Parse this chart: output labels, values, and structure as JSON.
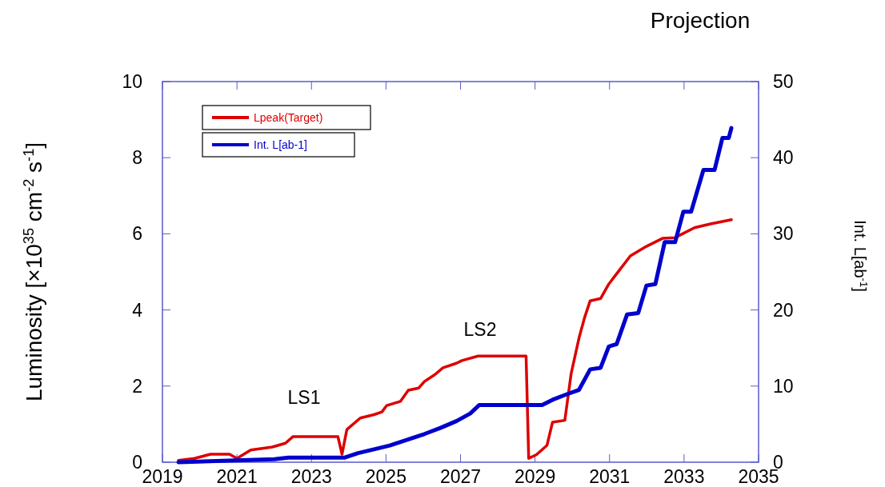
{
  "chart_data": {
    "type": "line",
    "title": "Projection",
    "ylabel": "Luminosity [×10$^{35}$ cm$^{-2}$ s$^{-1}$]",
    "y2label": "Int. L[ab$^{-1}$]",
    "annotations": [
      "LS1",
      "LS2"
    ],
    "xlim": [
      2019,
      2035
    ],
    "xticks": [
      2019,
      2021,
      2023,
      2025,
      2027,
      2029,
      2031,
      2033,
      2035
    ],
    "ylim": [
      0,
      10
    ],
    "yticks": [
      0,
      2,
      4,
      6,
      8,
      10
    ],
    "y2lim": [
      0,
      50
    ],
    "y2ticks": [
      0,
      10,
      20,
      30,
      40,
      50
    ],
    "legend": "top left",
    "grid": false,
    "line_style": "solid",
    "marker": "none",
    "series": [
      {
        "name": "Lpeak(Target)",
        "color": "#dd0000",
        "x": [
          2019.43,
          2019.86,
          2020.29,
          2020.8,
          2021.0,
          2021.37,
          2021.95,
          2022.3,
          2022.5,
          2023.71,
          2023.82,
          2023.95,
          2024.31,
          2024.68,
          2024.89,
          2025.02,
          2025.39,
          2025.6,
          2025.88,
          2026.03,
          2026.31,
          2026.53,
          2026.89,
          2027.04,
          2027.47,
          2028.76,
          2028.83,
          2029.04,
          2029.32,
          2029.47,
          2029.8,
          2029.97,
          2030.18,
          2030.33,
          2030.48,
          2030.76,
          2030.98,
          2031.26,
          2031.56,
          2031.99,
          2032.42,
          2032.76,
          2033.28,
          2033.71,
          2034.27
        ],
        "values": [
          0.05,
          0.1,
          0.21,
          0.21,
          0.1,
          0.32,
          0.4,
          0.5,
          0.67,
          0.67,
          0.21,
          0.86,
          1.16,
          1.25,
          1.32,
          1.49,
          1.6,
          1.89,
          1.95,
          2.12,
          2.3,
          2.48,
          2.6,
          2.67,
          2.79,
          2.79,
          0.1,
          0.2,
          0.44,
          1.05,
          1.1,
          2.33,
          3.26,
          3.8,
          4.24,
          4.3,
          4.68,
          5.04,
          5.42,
          5.67,
          5.88,
          5.9,
          6.16,
          6.26,
          6.37
        ]
      },
      {
        "name": "Int. L[ab-1]",
        "color": "#0000cc",
        "axis": "y2",
        "x": [
          2019.43,
          2022.0,
          2022.38,
          2023.88,
          2024.25,
          2024.68,
          2025.1,
          2025.54,
          2026.03,
          2026.46,
          2026.89,
          2027.26,
          2027.5,
          2029.19,
          2029.47,
          2029.84,
          2030.18,
          2030.48,
          2030.76,
          2030.98,
          2031.19,
          2031.47,
          2031.77,
          2031.99,
          2032.23,
          2032.48,
          2032.76,
          2032.98,
          2033.19,
          2033.52,
          2033.82,
          2034.03,
          2034.2,
          2034.27
        ],
        "values": [
          0,
          0.4,
          0.6,
          0.6,
          1.2,
          1.7,
          2.2,
          2.9,
          3.7,
          4.5,
          5.4,
          6.4,
          7.5,
          7.5,
          8.2,
          8.9,
          9.5,
          12.2,
          12.4,
          15.2,
          15.5,
          19.4,
          19.6,
          23.2,
          23.4,
          28.9,
          28.9,
          32.9,
          32.9,
          38.4,
          38.4,
          42.6,
          42.6,
          43.9
        ]
      }
    ]
  }
}
